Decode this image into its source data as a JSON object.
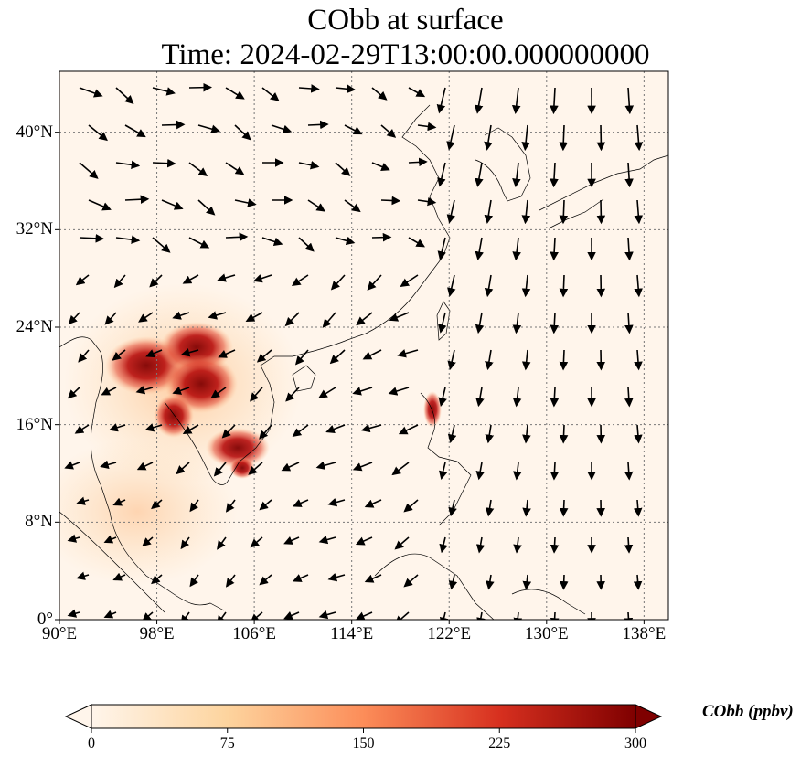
{
  "title": {
    "line1": "CObb at surface",
    "line2": "Time: 2024-02-29T13:00:00.000000000"
  },
  "map": {
    "lon_range": [
      90,
      140
    ],
    "lat_range": [
      0,
      45
    ],
    "x_ticks": [
      "90°E",
      "98°E",
      "106°E",
      "114°E",
      "122°E",
      "130°E",
      "138°E"
    ],
    "x_tick_values": [
      90,
      98,
      106,
      114,
      122,
      130,
      138
    ],
    "y_ticks": [
      "0°",
      "8°N",
      "16°N",
      "24°N",
      "32°N",
      "40°N"
    ],
    "y_tick_values": [
      0,
      8,
      16,
      24,
      32,
      40
    ],
    "gridlines": true,
    "colormap": [
      "#fff5eb",
      "#fdd49e",
      "#fc8d59",
      "#d7301f",
      "#7f0000"
    ]
  },
  "colorbar": {
    "label": "CObb (ppbv)",
    "ticks": [
      "0",
      "75",
      "150",
      "225",
      "300"
    ],
    "tick_values": [
      0,
      75,
      150,
      225,
      300
    ],
    "range": [
      0,
      300
    ],
    "extend": "both"
  }
}
